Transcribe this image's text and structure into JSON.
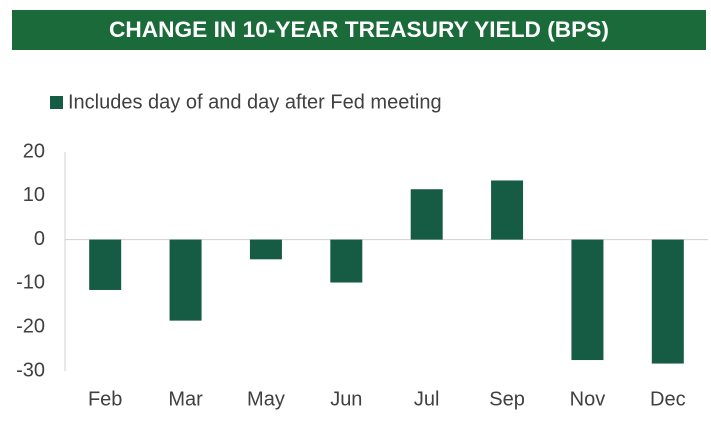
{
  "chart_data": {
    "type": "bar",
    "title": "CHANGE IN 10-YEAR TREASURY YIELD (BPS)",
    "categories": [
      "Feb",
      "Mar",
      "May",
      "Jun",
      "Jul",
      "Sep",
      "Nov",
      "Dec"
    ],
    "series": [
      {
        "name": "Includes day of and day after Fed meeting",
        "color": "#165c44",
        "values": [
          -11.5,
          -18.5,
          -4.5,
          -9.8,
          11.5,
          13.5,
          -27.5,
          -28.3
        ]
      }
    ],
    "ylim": [
      -30,
      20
    ],
    "yticks": [
      20,
      10,
      0,
      -10,
      -20,
      -30
    ],
    "grid": false,
    "legend": "top-left"
  }
}
